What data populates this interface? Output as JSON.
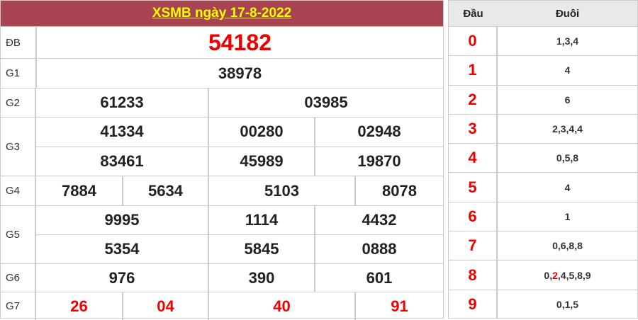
{
  "title": "XSMB ngày 17-8-2022",
  "labels": {
    "db": "ĐB",
    "g1": "G1",
    "g2": "G2",
    "g3": "G3",
    "g4": "G4",
    "g5": "G5",
    "g6": "G6",
    "g7": "G7"
  },
  "prizes": {
    "db": [
      "54182"
    ],
    "g1": [
      "38978"
    ],
    "g2": [
      "61233",
      "03985"
    ],
    "g3": [
      "41334",
      "00280",
      "02948",
      "83461",
      "45989",
      "19870"
    ],
    "g4": [
      "7884",
      "5634",
      "5103",
      "8078"
    ],
    "g5": [
      "9995",
      "1114",
      "4432",
      "5354",
      "5845",
      "0888"
    ],
    "g6": [
      "976",
      "390",
      "601"
    ],
    "g7": [
      "26",
      "04",
      "40",
      "91"
    ]
  },
  "loto": {
    "head_label": "Đầu",
    "tail_label": "Đuôi",
    "rows": [
      {
        "head": "0",
        "tail": "1,3,4"
      },
      {
        "head": "1",
        "tail": "4"
      },
      {
        "head": "2",
        "tail": "6"
      },
      {
        "head": "3",
        "tail": "2,3,4,4"
      },
      {
        "head": "4",
        "tail": "0,5,8"
      },
      {
        "head": "5",
        "tail": "4"
      },
      {
        "head": "6",
        "tail": "1"
      },
      {
        "head": "7",
        "tail": "0,6,8,8"
      },
      {
        "head": "8",
        "tail_parts": [
          "0,",
          "2",
          ",4,5,8,9"
        ]
      },
      {
        "head": "9",
        "tail": "0,1,5"
      }
    ]
  },
  "colors": {
    "header_bg": "#a84452",
    "title": "#ffff00",
    "highlight": "#ee0000"
  }
}
